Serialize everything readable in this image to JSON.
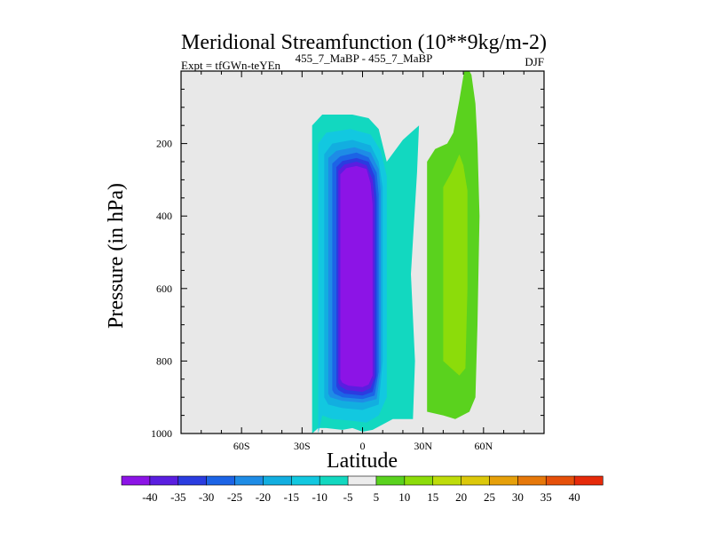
{
  "chart_data": {
    "type": "contour",
    "title": "Meridional Streamfunction (10**9kg/m-2)",
    "subtitle_left": "Expt = tfGWn-teYEn",
    "subtitle_center": "455_7_MaBP - 455_7_MaBP",
    "subtitle_right": "DJF",
    "xlabel": "Latitude",
    "ylabel": "Pressure (in hPa)",
    "xlim": [
      -90,
      90
    ],
    "ylim": [
      1000,
      0
    ],
    "y_reversed": true,
    "x_ticks": [
      {
        "value": -60,
        "label": "60S"
      },
      {
        "value": -30,
        "label": "30S"
      },
      {
        "value": 0,
        "label": "0"
      },
      {
        "value": 30,
        "label": "30N"
      },
      {
        "value": 60,
        "label": "60N"
      }
    ],
    "y_ticks": [
      {
        "value": 200,
        "label": "200"
      },
      {
        "value": 400,
        "label": "400"
      },
      {
        "value": 600,
        "label": "600"
      },
      {
        "value": 800,
        "label": "800"
      },
      {
        "value": 1000,
        "label": "1000"
      }
    ],
    "background_color": "#e8e8e8",
    "colorbar": {
      "levels": [
        "-40",
        "-35",
        "-30",
        "-25",
        "-20",
        "-15",
        "-10",
        "-5",
        "5",
        "10",
        "15",
        "20",
        "25",
        "30",
        "35",
        "40"
      ],
      "colors": [
        "#8c14e6",
        "#5a1ee0",
        "#2a3ce0",
        "#1c64e6",
        "#1e8ce6",
        "#12aee0",
        "#12c8e0",
        "#12d8c0",
        "#ececec",
        "#5ad21e",
        "#8cdc0a",
        "#bedc0a",
        "#dcc80a",
        "#e6a00a",
        "#e6780a",
        "#e6500a",
        "#e62a0a"
      ]
    },
    "regions": [
      {
        "name": "southern-cell",
        "level": "-5",
        "points": [
          [
            -25,
            1000
          ],
          [
            -25,
            150
          ],
          [
            -20,
            120
          ],
          [
            -5,
            120
          ],
          [
            3,
            130
          ],
          [
            8,
            160
          ],
          [
            12,
            250
          ],
          [
            20,
            190
          ],
          [
            25,
            165
          ],
          [
            28,
            150
          ],
          [
            27,
            280
          ],
          [
            24,
            560
          ],
          [
            26,
            800
          ],
          [
            25,
            960
          ],
          [
            15,
            960
          ],
          [
            5,
            990
          ],
          [
            0,
            995
          ],
          [
            -5,
            985
          ],
          [
            -10,
            990
          ],
          [
            -18,
            985
          ],
          [
            -22,
            985
          ],
          [
            -25,
            1000
          ]
        ]
      },
      {
        "name": "southern-cell",
        "level": "-10",
        "points": [
          [
            -22,
            1000
          ],
          [
            -22,
            200
          ],
          [
            -18,
            170
          ],
          [
            -6,
            160
          ],
          [
            4,
            175
          ],
          [
            9,
            220
          ],
          [
            12,
            290
          ],
          [
            12,
            700
          ],
          [
            12,
            900
          ],
          [
            8,
            950
          ],
          [
            2,
            970
          ],
          [
            -5,
            965
          ],
          [
            -15,
            960
          ],
          [
            -20,
            950
          ],
          [
            -22,
            1000
          ]
        ]
      },
      {
        "name": "southern-cell",
        "level": "-15",
        "points": [
          [
            -19,
            900
          ],
          [
            -19,
            230
          ],
          [
            -15,
            200
          ],
          [
            -5,
            190
          ],
          [
            4,
            205
          ],
          [
            8,
            250
          ],
          [
            10,
            320
          ],
          [
            10,
            800
          ],
          [
            8,
            920
          ],
          [
            0,
            935
          ],
          [
            -10,
            930
          ],
          [
            -17,
            920
          ],
          [
            -19,
            900
          ]
        ]
      },
      {
        "name": "southern-cell",
        "level": "-20",
        "points": [
          [
            -17,
            890
          ],
          [
            -17,
            240
          ],
          [
            -13,
            220
          ],
          [
            -4,
            210
          ],
          [
            4,
            225
          ],
          [
            8,
            270
          ],
          [
            9,
            330
          ],
          [
            9,
            820
          ],
          [
            7,
            905
          ],
          [
            0,
            915
          ],
          [
            -10,
            910
          ],
          [
            -16,
            900
          ],
          [
            -17,
            890
          ]
        ]
      },
      {
        "name": "southern-cell",
        "level": "-25",
        "points": [
          [
            -15,
            880
          ],
          [
            -15,
            255
          ],
          [
            -11,
            235
          ],
          [
            -3,
            225
          ],
          [
            3,
            238
          ],
          [
            7,
            280
          ],
          [
            8,
            340
          ],
          [
            8,
            830
          ],
          [
            6,
            895
          ],
          [
            0,
            905
          ],
          [
            -10,
            900
          ],
          [
            -14,
            890
          ],
          [
            -15,
            880
          ]
        ]
      },
      {
        "name": "southern-cell",
        "level": "-30",
        "points": [
          [
            -13,
            870
          ],
          [
            -13,
            265
          ],
          [
            -10,
            248
          ],
          [
            -3,
            240
          ],
          [
            3,
            250
          ],
          [
            6,
            290
          ],
          [
            7,
            350
          ],
          [
            7,
            840
          ],
          [
            5,
            885
          ],
          [
            0,
            895
          ],
          [
            -9,
            890
          ],
          [
            -12,
            880
          ],
          [
            -13,
            870
          ]
        ]
      },
      {
        "name": "southern-cell",
        "level": "-35",
        "points": [
          [
            -12,
            860
          ],
          [
            -12,
            275
          ],
          [
            -9,
            258
          ],
          [
            -3,
            250
          ],
          [
            2,
            260
          ],
          [
            5,
            300
          ],
          [
            6,
            360
          ],
          [
            6,
            845
          ],
          [
            4,
            875
          ],
          [
            0,
            885
          ],
          [
            -8,
            880
          ],
          [
            -11,
            870
          ],
          [
            -12,
            860
          ]
        ]
      },
      {
        "name": "southern-cell",
        "level": "-40",
        "points": [
          [
            -11,
            850
          ],
          [
            -11,
            285
          ],
          [
            -8,
            268
          ],
          [
            -3,
            262
          ],
          [
            2,
            270
          ],
          [
            4,
            310
          ],
          [
            5,
            370
          ],
          [
            5,
            840
          ],
          [
            3,
            865
          ],
          [
            0,
            872
          ],
          [
            -7,
            868
          ],
          [
            -10,
            860
          ],
          [
            -11,
            850
          ]
        ]
      },
      {
        "name": "northern-cell",
        "level": "5",
        "points": [
          [
            32,
            940
          ],
          [
            32,
            250
          ],
          [
            36,
            215
          ],
          [
            42,
            200
          ],
          [
            45,
            170
          ],
          [
            48,
            80
          ],
          [
            51,
            -20
          ],
          [
            54,
            10
          ],
          [
            56,
            90
          ],
          [
            57,
            200
          ],
          [
            58,
            400
          ],
          [
            57,
            700
          ],
          [
            56,
            900
          ],
          [
            53,
            940
          ],
          [
            46,
            960
          ],
          [
            40,
            950
          ],
          [
            32,
            940
          ]
        ]
      },
      {
        "name": "northern-cell",
        "level": "10",
        "points": [
          [
            40,
            800
          ],
          [
            40,
            320
          ],
          [
            44,
            280
          ],
          [
            48,
            230
          ],
          [
            50,
            260
          ],
          [
            52,
            330
          ],
          [
            52,
            600
          ],
          [
            51,
            820
          ],
          [
            48,
            840
          ],
          [
            44,
            820
          ],
          [
            40,
            800
          ]
        ]
      }
    ]
  }
}
